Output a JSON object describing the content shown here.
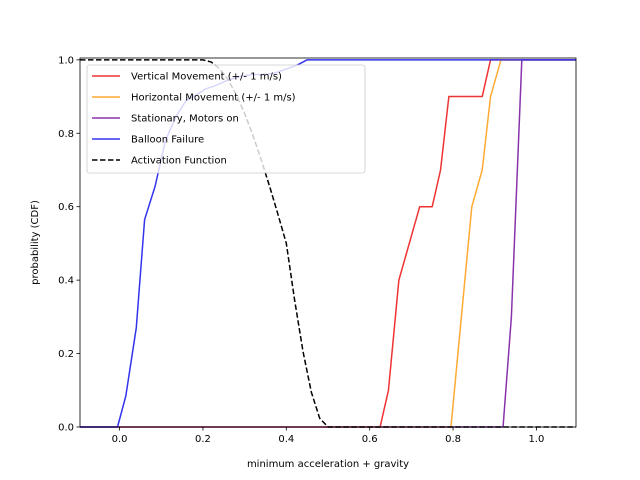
{
  "chart_data": {
    "type": "line",
    "title": "",
    "xlabel": "minimum acceleration + gravity",
    "ylabel": "probability (CDF)",
    "xlim": [
      -0.095,
      1.095
    ],
    "ylim": [
      0.0,
      1.005
    ],
    "xticks": [
      0.0,
      0.2,
      0.4,
      0.6,
      0.8,
      1.0
    ],
    "xtick_labels": [
      "0.0",
      "0.2",
      "0.4",
      "0.6",
      "0.8",
      "1.0"
    ],
    "yticks": [
      0.0,
      0.2,
      0.4,
      0.6,
      0.8,
      1.0
    ],
    "ytick_labels": [
      "0.0",
      "0.2",
      "0.4",
      "0.6",
      "0.8",
      "1.0"
    ],
    "grid": false,
    "legend_position": "upper left",
    "series": [
      {
        "name": "Vertical Movement (+/- 1 m/s)",
        "color": "#ee3333",
        "style": "solid",
        "x": [
          -0.095,
          0.625,
          0.645,
          0.67,
          0.72,
          0.735,
          0.75,
          0.77,
          0.79,
          0.87,
          0.89,
          1.095
        ],
        "y": [
          0.0,
          0.0,
          0.1,
          0.4,
          0.6,
          0.6,
          0.6,
          0.7,
          0.9,
          0.9,
          1.0,
          1.0
        ]
      },
      {
        "name": "Horizontal Movement (+/- 1 m/s)",
        "color": "#ffaa33",
        "style": "solid",
        "x": [
          -0.095,
          0.795,
          0.845,
          0.87,
          0.89,
          0.915,
          1.095
        ],
        "y": [
          0.0,
          0.0,
          0.6,
          0.7,
          0.9,
          1.0,
          1.0
        ]
      },
      {
        "name": "Stationary, Motors on",
        "color": "#8833aa",
        "style": "solid",
        "x": [
          -0.095,
          0.92,
          0.94,
          0.965,
          1.095
        ],
        "y": [
          0.0,
          0.0,
          0.3,
          1.0,
          1.0
        ]
      },
      {
        "name": "Balloon Failure",
        "color": "#3333ee",
        "style": "solid",
        "x": [
          -0.095,
          -0.005,
          0.015,
          0.04,
          0.06,
          0.085,
          0.11,
          0.135,
          0.16,
          0.185,
          0.205,
          0.23,
          0.26,
          0.29,
          0.32,
          0.35,
          0.375,
          0.4,
          0.425,
          0.45,
          1.095
        ],
        "y": [
          0.0,
          0.0,
          0.085,
          0.27,
          0.565,
          0.655,
          0.78,
          0.845,
          0.89,
          0.905,
          0.92,
          0.93,
          0.945,
          0.955,
          0.96,
          0.96,
          0.965,
          0.975,
          0.985,
          1.0,
          1.0
        ]
      },
      {
        "name": "Activation Function",
        "color": "#000000",
        "style": "dashed",
        "x": [
          -0.095,
          0.2,
          0.22,
          0.24,
          0.26,
          0.28,
          0.3,
          0.32,
          0.34,
          0.36,
          0.38,
          0.4,
          0.42,
          0.44,
          0.46,
          0.48,
          0.5,
          1.095
        ],
        "y": [
          1.0,
          1.0,
          0.994,
          0.976,
          0.946,
          0.905,
          0.854,
          0.794,
          0.727,
          0.655,
          0.579,
          0.5,
          0.345,
          0.206,
          0.095,
          0.024,
          0.0,
          0.0
        ]
      }
    ]
  }
}
